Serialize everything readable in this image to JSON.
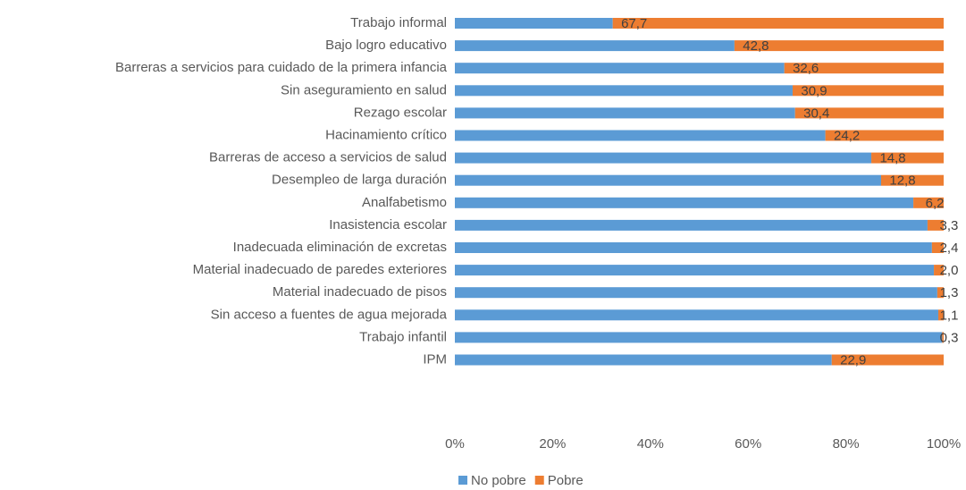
{
  "chart_data": {
    "type": "stacked_barh",
    "categories": [
      "Trabajo informal",
      "Bajo logro educativo",
      "Barreras a servicios para cuidado de la primera infancia",
      "Sin aseguramiento en salud",
      "Rezago escolar",
      "Hacinamiento crítico",
      "Barreras de acceso a servicios de salud",
      "Desempleo de larga duración",
      "Analfabetismo",
      "Inasistencia escolar",
      "Inadecuada eliminación de excretas",
      "Material inadecuado de paredes exteriores",
      "Material inadecuado de pisos",
      "Sin acceso a fuentes de agua mejorada",
      "Trabajo infantil",
      "IPM"
    ],
    "series": [
      {
        "name": "No pobre",
        "color": "#5b9bd5",
        "values": [
          32.3,
          57.2,
          67.4,
          69.1,
          69.6,
          75.8,
          85.2,
          87.2,
          93.8,
          96.7,
          97.6,
          98.0,
          98.7,
          98.9,
          99.7,
          77.1
        ]
      },
      {
        "name": "Pobre",
        "color": "#ed7d31",
        "values": [
          67.7,
          42.8,
          32.6,
          30.9,
          30.4,
          24.2,
          14.8,
          12.8,
          6.2,
          3.3,
          2.4,
          2.0,
          1.3,
          1.1,
          0.3,
          22.9
        ],
        "value_labels": [
          "67,7",
          "42,8",
          "32,6",
          "30,9",
          "30,4",
          "24,2",
          "14,8",
          "12,8",
          "6,2",
          "3,3",
          "2,4",
          "2,0",
          "1,3",
          "1,1",
          "0,3",
          "22,9"
        ]
      }
    ],
    "xlim": [
      0,
      100
    ],
    "xticks": [
      {
        "value": 0,
        "label": "0%"
      },
      {
        "value": 20,
        "label": "20%"
      },
      {
        "value": 40,
        "label": "40%"
      },
      {
        "value": 60,
        "label": "60%"
      },
      {
        "value": 80,
        "label": "80%"
      },
      {
        "value": 100,
        "label": "100%"
      }
    ],
    "legend": "bottom"
  }
}
